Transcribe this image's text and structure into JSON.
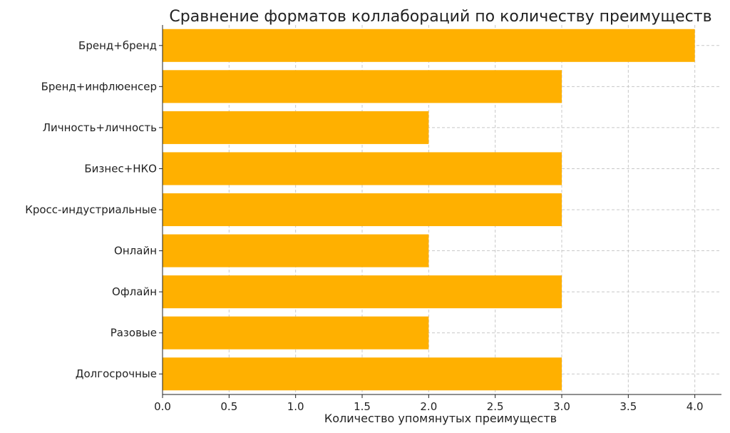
{
  "chart_data": {
    "type": "bar",
    "orientation": "horizontal",
    "title": "Сравнение форматов коллабораций по количеству преимуществ",
    "xlabel": "Количество упомянутых преимуществ",
    "ylabel": "",
    "categories": [
      "Бренд+бренд",
      "Бренд+инфлюенсер",
      "Личность+личность",
      "Бизнес+НКО",
      "Кросс-индустриальные",
      "Онлайн",
      "Офлайн",
      "Разовые",
      "Долгосрочные"
    ],
    "values": [
      4,
      3,
      2,
      3,
      3,
      2,
      3,
      2,
      3
    ],
    "xlim": [
      0,
      4.2
    ],
    "xticks": [
      "0.0",
      "0.5",
      "1.0",
      "1.5",
      "2.0",
      "2.5",
      "3.0",
      "3.5",
      "4.0"
    ],
    "grid": true,
    "bar_color": "#FFB000"
  }
}
